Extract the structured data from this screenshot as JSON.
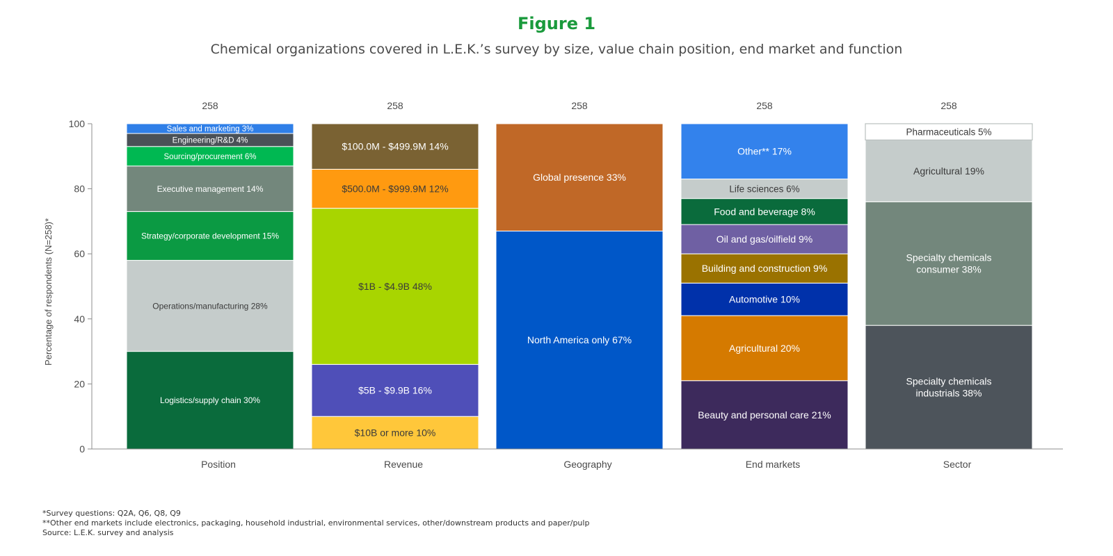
{
  "figure_label": "Figure 1",
  "chart_data": {
    "type": "bar",
    "stacked": true,
    "title": "Figure 1",
    "subtitle": "Chemical organizations covered in L.E.K.’s survey by size, value chain position, end market and function",
    "ylabel": "Percentage of respondents (N=258)*",
    "xlabel": "",
    "ylim": [
      0,
      100
    ],
    "yticks": [
      0,
      20,
      40,
      60,
      80,
      100
    ],
    "grid": false,
    "categories": [
      "Position",
      "Revenue",
      "Geography",
      "End markets",
      "Sector"
    ],
    "totals": [
      "258",
      "258",
      "258",
      "258",
      "258"
    ],
    "stacks": [
      {
        "category": "Position",
        "segments": [
          {
            "label": "Logistics/supply chain 30%",
            "value": 30,
            "color": "#0a6b3c",
            "text_color": "#ffffff"
          },
          {
            "label": "Operations/manufacturing 28%",
            "value": 28,
            "color": "#c5cccb",
            "text_color": "#3a3a3a"
          },
          {
            "label": "Strategy/corporate development 15%",
            "value": 15,
            "color": "#0b9a43",
            "text_color": "#ffffff"
          },
          {
            "label": "Executive management 14%",
            "value": 14,
            "color": "#73877c",
            "text_color": "#ffffff"
          },
          {
            "label": "Sourcing/procurement 6%",
            "value": 6,
            "color": "#00b852",
            "text_color": "#ffffff"
          },
          {
            "label": "Engineering/R&D 4%",
            "value": 4,
            "color": "#4a5157",
            "text_color": "#ffffff"
          },
          {
            "label": "Sales and marketing 3%",
            "value": 3,
            "color": "#2f7fe8",
            "text_color": "#ffffff"
          }
        ]
      },
      {
        "category": "Revenue",
        "segments": [
          {
            "label": "$10B or more 10%",
            "value": 10,
            "color": "#ffc73a",
            "text_color": "#3a3a3a"
          },
          {
            "label": "$5B - $9.9B 16%",
            "value": 16,
            "color": "#4f4fb8",
            "text_color": "#ffffff"
          },
          {
            "label": "$1B - $4.9B 48%",
            "value": 48,
            "color": "#a8d500",
            "text_color": "#3a3a3a"
          },
          {
            "label": "$500.0M - $999.9M 12%",
            "value": 12,
            "color": "#ff9a10",
            "text_color": "#3a3a3a"
          },
          {
            "label": "$100.0M - $499.9M 14%",
            "value": 14,
            "color": "#7a6233",
            "text_color": "#ffffff"
          }
        ]
      },
      {
        "category": "Geography",
        "segments": [
          {
            "label": "North America only 67%",
            "value": 67,
            "color": "#0057c8",
            "text_color": "#ffffff"
          },
          {
            "label": "Global presence 33%",
            "value": 33,
            "color": "#c06827",
            "text_color": "#ffffff"
          }
        ]
      },
      {
        "category": "End markets",
        "segments": [
          {
            "label": "Beauty and personal care 21%",
            "value": 21,
            "color": "#3d2a5c",
            "text_color": "#ffffff"
          },
          {
            "label": "Agricultural 20%",
            "value": 20,
            "color": "#d57a00",
            "text_color": "#ffffff"
          },
          {
            "label": "Automotive 10%",
            "value": 10,
            "color": "#0031aa",
            "text_color": "#ffffff"
          },
          {
            "label": "Building and construction  9%",
            "value": 9,
            "color": "#9a7200",
            "text_color": "#ffffff"
          },
          {
            "label": "Oil and gas/oilfield  9%",
            "value": 9,
            "color": "#6f60a3",
            "text_color": "#ffffff"
          },
          {
            "label": "Food and beverage 8%",
            "value": 8,
            "color": "#0a6b3c",
            "text_color": "#ffffff"
          },
          {
            "label": "Life sciences 6%",
            "value": 6,
            "color": "#c5cccb",
            "text_color": "#3a3a3a"
          },
          {
            "label": "Other** 17%",
            "value": 17,
            "color": "#3382ec",
            "text_color": "#ffffff"
          }
        ]
      },
      {
        "category": "Sector",
        "segments": [
          {
            "label": "Specialty chemicals\nindustrials 38%",
            "value": 38,
            "color": "#4d545b",
            "text_color": "#ffffff"
          },
          {
            "label": "Specialty chemicals\nconsumer 38%",
            "value": 38,
            "color": "#73877c",
            "text_color": "#ffffff"
          },
          {
            "label": "Agricultural 19%",
            "value": 19,
            "color": "#c5cccb",
            "text_color": "#3a3a3a"
          },
          {
            "label": "Pharmaceuticals 5%",
            "value": 5,
            "color": "#ffffff",
            "text_color": "#3a3a3a",
            "outline": "#b9c0bf"
          }
        ]
      }
    ]
  },
  "footnotes": [
    "*Survey questions: Q2A, Q6, Q8, Q9",
    "**Other end markets include electronics, packaging, household industrial, environmental services, other/downstream products and paper/pulp",
    "Source: L.E.K. survey and analysis"
  ]
}
